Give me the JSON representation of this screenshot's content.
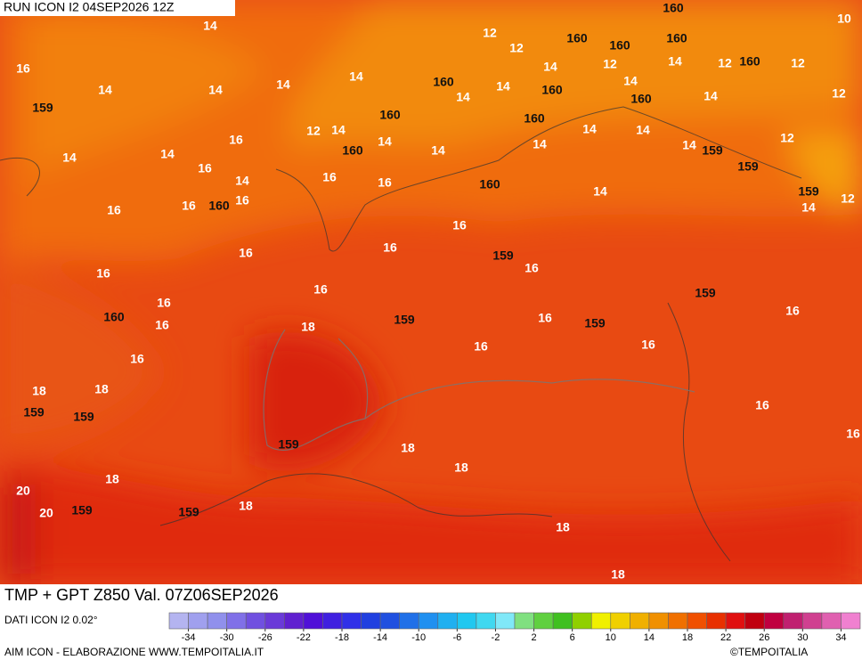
{
  "header": {
    "run": "RUN ICON I2 04SEP2026 12Z"
  },
  "map": {
    "contour_labels": [
      14,
      16,
      14,
      159,
      14,
      14,
      14,
      12,
      12,
      160,
      160,
      160,
      160,
      160,
      10,
      12,
      12,
      14,
      12,
      14,
      12,
      160,
      14,
      14,
      160,
      14,
      160,
      14,
      160,
      12,
      14,
      160,
      14,
      14,
      12,
      14,
      14,
      16,
      160,
      14,
      14,
      14,
      14,
      159,
      159,
      16,
      14,
      16,
      16,
      160,
      14,
      159,
      12,
      14,
      16,
      16,
      160,
      16,
      16,
      16,
      16,
      159,
      16,
      16,
      16,
      159,
      16,
      160,
      16,
      18,
      159,
      16,
      159,
      16,
      16,
      16,
      16,
      18,
      18,
      159,
      159,
      16,
      16,
      159,
      18,
      18,
      18,
      20,
      20,
      159,
      159,
      18,
      18,
      18
    ]
  },
  "footer": {
    "product": "TMP + GPT Z850 Val. 07Z06SEP2026",
    "source": "DATI ICON I2 0.02°",
    "credit": "AIM ICON - ELABORAZIONE WWW.TEMPOITALIA.IT",
    "copyright": "©TEMPOITALIA"
  },
  "colorbar": {
    "range": [
      -36,
      36
    ],
    "colors": [
      "#b4b4f0",
      "#a0a0ee",
      "#9090ec",
      "#8070e8",
      "#7050e0",
      "#6a3ad8",
      "#6020d0",
      "#5010d8",
      "#4020e0",
      "#3030e8",
      "#2040e0",
      "#2050e0",
      "#2070e8",
      "#2090f0",
      "#20b0f0",
      "#20c8f0",
      "#40d8f0",
      "#80e8f8",
      "#80e080",
      "#60d040",
      "#40c020",
      "#90d000",
      "#f0f000",
      "#f0d000",
      "#f0b000",
      "#f09000",
      "#f07000",
      "#f05000",
      "#e83000",
      "#e01010",
      "#c00010",
      "#c00040",
      "#c02070",
      "#d04090",
      "#e060b0",
      "#f080d0"
    ],
    "ticks": [
      -34,
      -30,
      -26,
      -22,
      -18,
      -14,
      -10,
      -6,
      -2,
      2,
      6,
      10,
      14,
      18,
      22,
      26,
      30,
      34
    ]
  }
}
